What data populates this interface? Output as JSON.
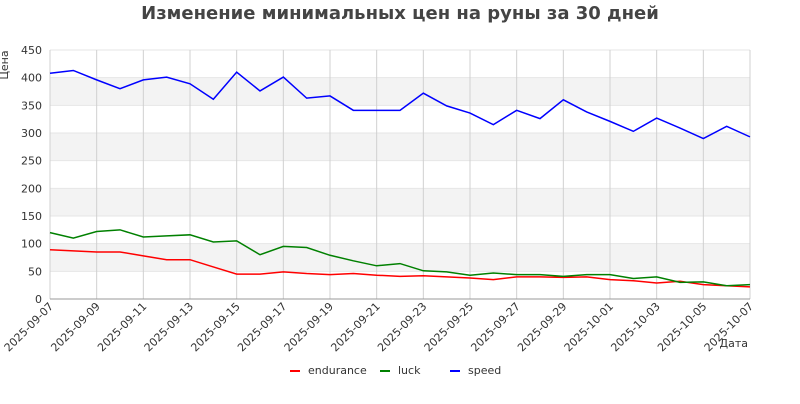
{
  "chart_data": {
    "type": "line",
    "title": "Изменение минимальных цен на руны за 30 дней",
    "y_label": "Цена",
    "x_label": "Дата",
    "categories": [
      "2025-09-07",
      null,
      "2025-09-09",
      null,
      "2025-09-11",
      null,
      "2025-09-13",
      null,
      "2025-09-15",
      null,
      "2025-09-17",
      null,
      "2025-09-19",
      null,
      "2025-09-21",
      null,
      "2025-09-23",
      null,
      "2025-09-25",
      null,
      "2025-09-27",
      null,
      "2025-09-29",
      null,
      "2025-10-01",
      null,
      "2025-10-03",
      null,
      "2025-10-05",
      null,
      "2025-10-07"
    ],
    "series": [
      {
        "name": "endurance",
        "color": "#ff0000",
        "values": [
          89,
          87,
          85,
          85,
          78,
          71,
          71,
          58,
          45,
          45,
          49,
          46,
          44,
          46,
          43,
          41,
          42,
          40,
          38,
          35,
          40,
          40,
          39,
          40,
          35,
          33,
          29,
          32,
          26,
          24,
          22
        ]
      },
      {
        "name": "luck",
        "color": "#008000",
        "values": [
          120,
          110,
          122,
          125,
          112,
          114,
          116,
          103,
          105,
          80,
          95,
          93,
          79,
          69,
          60,
          64,
          51,
          49,
          43,
          47,
          44,
          44,
          41,
          44,
          44,
          37,
          40,
          30,
          31,
          24,
          26
        ]
      },
      {
        "name": "speed",
        "color": "#0000ff",
        "values": [
          408,
          413,
          396,
          380,
          396,
          401,
          389,
          361,
          410,
          376,
          401,
          363,
          367,
          341,
          341,
          341,
          372,
          349,
          336,
          315,
          341,
          326,
          360,
          338,
          321,
          303,
          327,
          309,
          290,
          312,
          293
        ]
      }
    ],
    "ylim": [
      0,
      450
    ],
    "yticks": [
      0,
      50,
      100,
      150,
      200,
      250,
      300,
      350,
      400,
      450
    ],
    "grid": true,
    "legend": "bottom"
  }
}
